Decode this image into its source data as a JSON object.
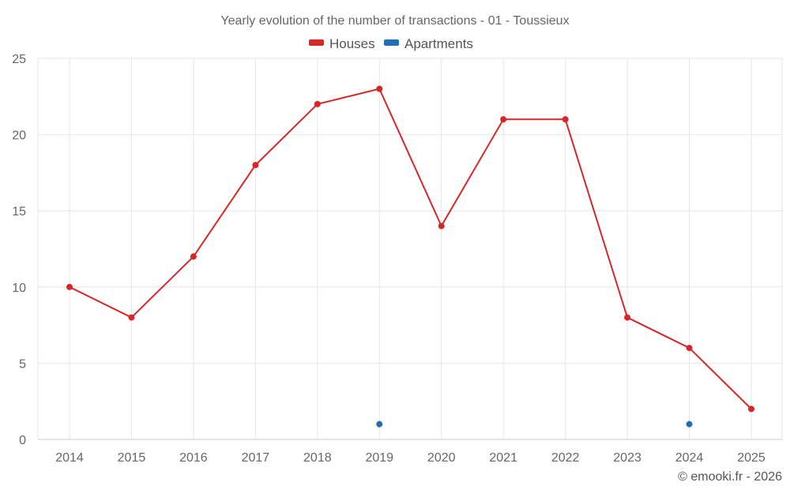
{
  "chart_data": {
    "type": "line",
    "title": "Yearly evolution of the number of transactions - 01 - Toussieux",
    "x": [
      2014,
      2015,
      2016,
      2017,
      2018,
      2019,
      2020,
      2021,
      2022,
      2023,
      2024,
      2025
    ],
    "xlabel": "",
    "ylabel": "",
    "ylim": [
      0,
      25
    ],
    "yticks": [
      0,
      5,
      10,
      15,
      20,
      25
    ],
    "grid": true,
    "legend_position": "top-center",
    "series": [
      {
        "name": "Houses",
        "color": "#d62728",
        "values": [
          10,
          8,
          12,
          18,
          22,
          23,
          14,
          21,
          21,
          8,
          6,
          2
        ]
      },
      {
        "name": "Apartments",
        "color": "#1f6fb4",
        "values": [
          null,
          null,
          null,
          null,
          null,
          1,
          null,
          null,
          null,
          null,
          1,
          null
        ]
      }
    ]
  },
  "credit": "© emooki.fr - 2026"
}
